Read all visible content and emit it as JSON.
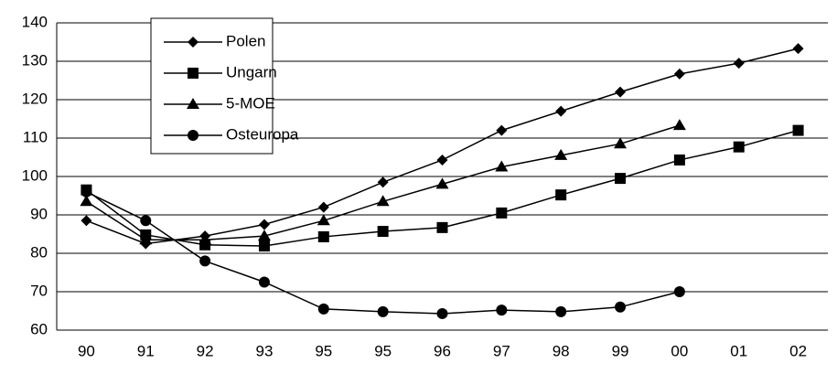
{
  "chart_data": {
    "type": "line",
    "categories": [
      "90",
      "91",
      "92",
      "93",
      "95",
      "95",
      "96",
      "97",
      "98",
      "99",
      "00",
      "01",
      "02"
    ],
    "series": [
      {
        "name": "Polen",
        "color": "#000000",
        "marker": "diamond",
        "values": [
          88.5,
          82.5,
          84.5,
          87.5,
          92,
          98.5,
          104.3,
          112,
          117,
          122,
          126.7,
          129.5,
          133.3
        ]
      },
      {
        "name": "Ungarn",
        "color": "#000000",
        "marker": "square",
        "values": [
          96.5,
          84.8,
          82.2,
          81.9,
          84.3,
          85.7,
          86.7,
          90.5,
          95.2,
          99.5,
          104.3,
          107.7,
          112
        ]
      },
      {
        "name": "5-MOE",
        "color": "#000000",
        "marker": "triangle",
        "values": [
          93.5,
          83.5,
          83.5,
          84.5,
          88.5,
          93.5,
          98,
          102.5,
          105.5,
          108.5,
          113.3,
          null,
          null
        ]
      },
      {
        "name": "Osteuropa",
        "color": "#000000",
        "marker": "circle",
        "values": [
          96,
          88.5,
          78,
          72.5,
          65.5,
          64.8,
          64.3,
          65.2,
          64.8,
          66,
          70,
          null,
          null
        ]
      }
    ],
    "ylim": [
      60,
      140
    ],
    "yticks": [
      60,
      70,
      80,
      90,
      100,
      110,
      120,
      130,
      140
    ],
    "grid": true
  }
}
